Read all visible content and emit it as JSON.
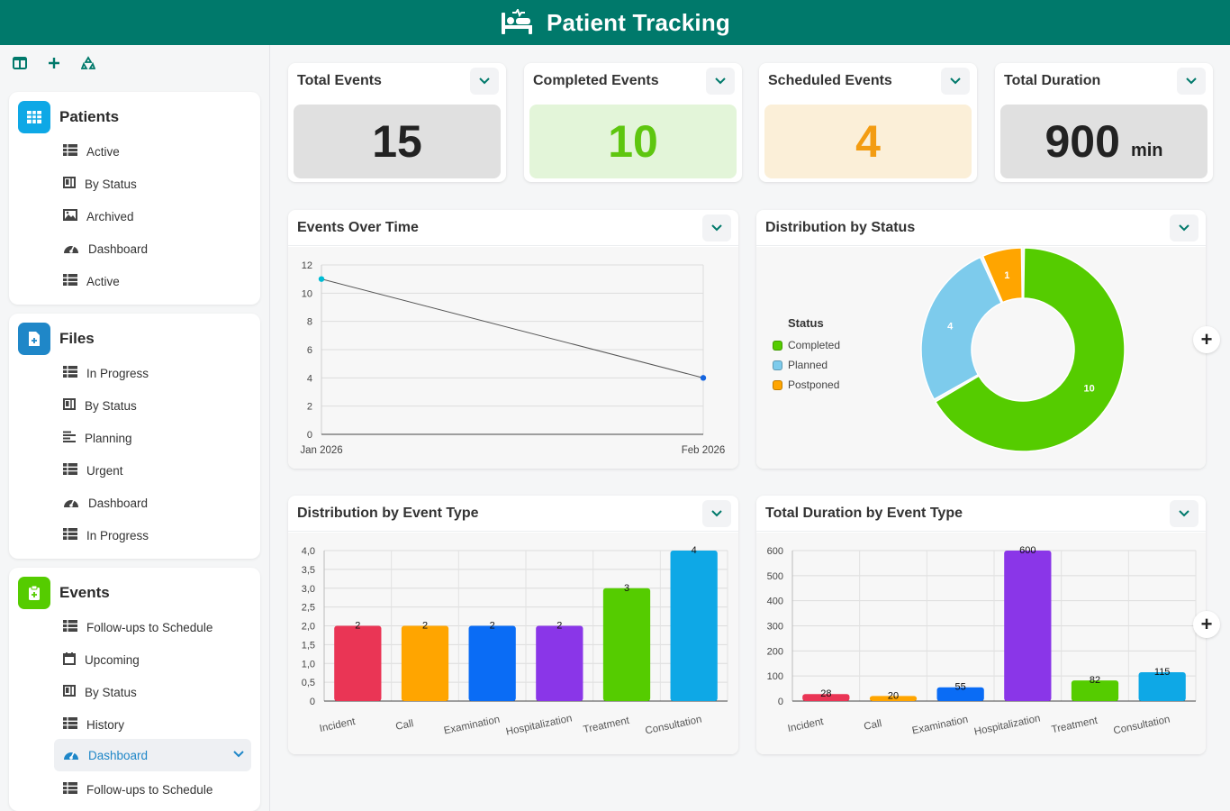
{
  "app": {
    "title": "Patient Tracking"
  },
  "sidebar": {
    "sections": [
      {
        "title": "Patients",
        "items": [
          {
            "label": "Active",
            "icon": "table-icon"
          },
          {
            "label": "By Status",
            "icon": "board-icon"
          },
          {
            "label": "Archived",
            "icon": "image-icon"
          },
          {
            "label": "Dashboard",
            "icon": "gauge-icon"
          },
          {
            "label": "Active",
            "icon": "table-icon"
          }
        ]
      },
      {
        "title": "Files",
        "items": [
          {
            "label": "In Progress",
            "icon": "table-icon"
          },
          {
            "label": "By Status",
            "icon": "board-icon"
          },
          {
            "label": "Planning",
            "icon": "gantt-icon"
          },
          {
            "label": "Urgent",
            "icon": "table-icon"
          },
          {
            "label": "Dashboard",
            "icon": "gauge-icon"
          },
          {
            "label": "In Progress",
            "icon": "table-icon"
          }
        ]
      },
      {
        "title": "Events",
        "items": [
          {
            "label": "Follow-ups to Schedule",
            "icon": "table-icon"
          },
          {
            "label": "Upcoming",
            "icon": "calendar-icon"
          },
          {
            "label": "By Status",
            "icon": "board-icon"
          },
          {
            "label": "History",
            "icon": "table-icon"
          },
          {
            "label": "Dashboard",
            "icon": "gauge-icon",
            "active": true
          },
          {
            "label": "Follow-ups to Schedule",
            "icon": "table-icon"
          }
        ]
      }
    ]
  },
  "kpis": [
    {
      "title": "Total Events",
      "value": "15",
      "unit": ""
    },
    {
      "title": "Completed Events",
      "value": "10",
      "unit": ""
    },
    {
      "title": "Scheduled Events",
      "value": "4",
      "unit": ""
    },
    {
      "title": "Total Duration",
      "value": "900",
      "unit": "min"
    }
  ],
  "colors": {
    "header": "#00796b",
    "accent_blue": "#1f87c8",
    "kpi_gray_bg": "#e0e0e0",
    "kpi_green_bg": "#e3f5d9",
    "kpi_green_fg": "#5ec60f",
    "kpi_orange_bg": "#fbefd8",
    "kpi_orange_fg": "#f39c12",
    "completed": "#55cc00",
    "planned": "#7dcbec",
    "postponed": "#ffa500"
  },
  "cards": {
    "events_over_time": {
      "title": "Events Over Time"
    },
    "status": {
      "title": "Distribution by Status",
      "legend_title": "Status"
    },
    "event_type": {
      "title": "Distribution by Event Type"
    },
    "duration": {
      "title": "Total Duration by Event Type"
    }
  },
  "chart_data": [
    {
      "type": "line",
      "title": "Events Over Time",
      "x": [
        "Jan 2026",
        "Feb 2026"
      ],
      "values": [
        11,
        4
      ],
      "ylim": [
        0,
        12
      ],
      "yticks": [
        0,
        2,
        4,
        6,
        8,
        10,
        12
      ],
      "grid": true
    },
    {
      "type": "pie",
      "title": "Distribution by Status",
      "legend_title": "Status",
      "legend_position": "left",
      "categories": [
        "Completed",
        "Planned",
        "Postponed"
      ],
      "values": [
        10,
        4,
        1
      ],
      "colors": [
        "#55cc00",
        "#7dcbec",
        "#ffa500"
      ]
    },
    {
      "type": "bar",
      "title": "Distribution by Event Type",
      "categories": [
        "Incident",
        "Call",
        "Examination",
        "Hospitalization",
        "Treatment",
        "Consultation"
      ],
      "values": [
        2,
        2,
        2,
        2,
        3,
        4
      ],
      "colors": [
        "#ea3555",
        "#ffa500",
        "#0a6cf5",
        "#8a36e8",
        "#55cc00",
        "#0ea8e6"
      ],
      "ylim": [
        0,
        4
      ],
      "yticks": [
        "0",
        "0,5",
        "1,0",
        "1,5",
        "2,0",
        "2,5",
        "3,0",
        "3,5",
        "4,0"
      ],
      "grid": true
    },
    {
      "type": "bar",
      "title": "Total Duration by Event Type",
      "categories": [
        "Incident",
        "Call",
        "Examination",
        "Hospitalization",
        "Treatment",
        "Consultation"
      ],
      "values": [
        28,
        20,
        55,
        600,
        82,
        115
      ],
      "colors": [
        "#ea3555",
        "#ffa500",
        "#0a6cf5",
        "#8a36e8",
        "#55cc00",
        "#0ea8e6"
      ],
      "ylim": [
        0,
        600
      ],
      "yticks": [
        "0",
        "100",
        "200",
        "300",
        "400",
        "500",
        "600"
      ],
      "grid": true
    }
  ]
}
